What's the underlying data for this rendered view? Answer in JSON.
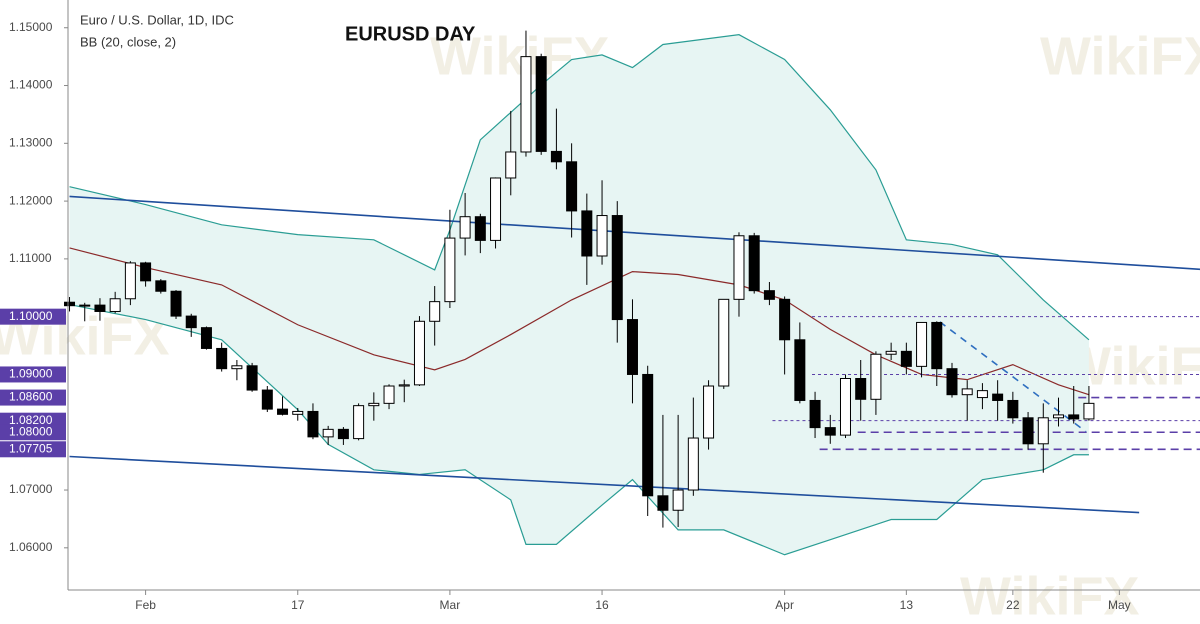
{
  "chart_data": {
    "type": "candlestick",
    "title": "EURUSD DAY",
    "legend_lines": [
      "Euro / U.S. Dollar, 1D, IDC",
      "BB (20, close, 2)"
    ],
    "watermark": "WikiFX",
    "xlim": [
      -0.1,
      74.3
    ],
    "ylim": [
      1.0527,
      1.1548
    ],
    "xticks": [
      {
        "value": 5,
        "label": "Feb"
      },
      {
        "value": 15,
        "label": "17"
      },
      {
        "value": 25,
        "label": "Mar"
      },
      {
        "value": 35,
        "label": "16"
      },
      {
        "value": 47,
        "label": "Apr"
      },
      {
        "value": 55,
        "label": "13"
      },
      {
        "value": 62,
        "label": "22"
      },
      {
        "value": 69,
        "label": "May"
      }
    ],
    "yticks": [
      {
        "value": 1.15,
        "label": "1.15000"
      },
      {
        "value": 1.14,
        "label": "1.14000"
      },
      {
        "value": 1.13,
        "label": "1.13000"
      },
      {
        "value": 1.12,
        "label": "1.12000"
      },
      {
        "value": 1.11,
        "label": "1.11000"
      },
      {
        "value": 1.07,
        "label": "1.07000"
      },
      {
        "value": 1.06,
        "label": "1.06000"
      }
    ],
    "up_color": "#ffffff",
    "down_color": "#000000",
    "open": [
      1.1025,
      1.1019,
      1.102,
      1.1009,
      1.1031,
      1.1093,
      1.1062,
      1.1044,
      1.1001,
      1.0981,
      1.0945,
      1.091,
      1.0915,
      1.0873,
      1.084,
      1.0831,
      1.0836,
      1.0792,
      1.0805,
      1.0789,
      1.0846,
      1.085,
      1.088,
      1.0882,
      1.0992,
      1.1026,
      1.1136,
      1.1173,
      1.1132,
      1.124,
      1.1285,
      1.145,
      1.1286,
      1.1268,
      1.1183,
      1.1105,
      1.1175,
      1.0995,
      1.09,
      1.069,
      1.0665,
      1.07,
      1.079,
      1.088,
      1.103,
      1.114,
      1.1045,
      1.103,
      1.096,
      1.0855,
      1.0808,
      1.0795,
      1.0893,
      1.0857,
      1.0935,
      1.094,
      1.0914,
      1.099,
      1.091,
      1.0865,
      1.086,
      1.0866,
      1.0855,
      1.0825,
      1.078,
      1.0825,
      1.083,
      1.0823
    ],
    "high": [
      1.1034,
      1.1024,
      1.1032,
      1.1043,
      1.1096,
      1.1095,
      1.1065,
      1.1046,
      1.1005,
      1.0983,
      1.0955,
      1.0925,
      1.092,
      1.088,
      1.0862,
      1.0842,
      1.085,
      1.0811,
      1.0809,
      1.085,
      1.0869,
      1.0883,
      1.0891,
      1.1001,
      1.1053,
      1.1185,
      1.1214,
      1.1178,
      1.1241,
      1.1356,
      1.1495,
      1.1455,
      1.136,
      1.13,
      1.1213,
      1.1236,
      1.12,
      1.103,
      1.0915,
      1.083,
      1.083,
      1.086,
      1.089,
      1.103,
      1.1146,
      1.1145,
      1.106,
      1.1035,
      1.099,
      1.087,
      1.083,
      1.09,
      1.0925,
      1.094,
      1.0955,
      1.0955,
      1.099,
      1.0992,
      1.092,
      1.089,
      1.0885,
      1.089,
      1.087,
      1.0835,
      1.085,
      1.086,
      1.088,
      1.088
    ],
    "low": [
      1.1009,
      1.0992,
      1.0993,
      1.1006,
      1.102,
      1.1052,
      1.104,
      1.0996,
      1.0965,
      1.0943,
      1.0905,
      1.089,
      1.087,
      1.0835,
      1.0829,
      1.082,
      1.0788,
      1.0778,
      1.0778,
      1.0786,
      1.082,
      1.084,
      1.0852,
      1.088,
      1.095,
      1.1015,
      1.1106,
      1.111,
      1.1118,
      1.121,
      1.1277,
      1.128,
      1.1255,
      1.1137,
      1.1055,
      1.109,
      1.0955,
      1.085,
      1.0655,
      1.0635,
      1.0636,
      1.069,
      1.077,
      1.0875,
      1.1,
      1.104,
      1.102,
      1.09,
      1.085,
      1.079,
      1.078,
      1.079,
      1.082,
      1.083,
      1.0925,
      1.09,
      1.0895,
      1.088,
      1.086,
      1.082,
      1.084,
      1.082,
      1.0815,
      1.077,
      1.073,
      1.081,
      1.0815,
      1.082
    ],
    "close": [
      1.1019,
      1.102,
      1.1009,
      1.1031,
      1.1093,
      1.1062,
      1.1044,
      1.1001,
      1.0981,
      1.0945,
      1.091,
      1.0915,
      1.0873,
      1.084,
      1.0831,
      1.0836,
      1.0792,
      1.0805,
      1.0789,
      1.0846,
      1.085,
      1.088,
      1.0882,
      1.0992,
      1.1026,
      1.1136,
      1.1173,
      1.1132,
      1.124,
      1.1285,
      1.145,
      1.1286,
      1.1268,
      1.1183,
      1.1105,
      1.1175,
      1.0995,
      1.09,
      1.069,
      1.0665,
      1.07,
      1.079,
      1.088,
      1.103,
      1.114,
      1.1045,
      1.103,
      1.096,
      1.0855,
      1.0808,
      1.0795,
      1.0893,
      1.0857,
      1.0935,
      1.094,
      1.0914,
      1.099,
      1.091,
      1.0865,
      1.0875,
      1.0872,
      1.0855,
      1.0825,
      1.078,
      1.0825,
      1.083,
      1.0823,
      1.085
    ],
    "bands": {
      "fill": "#e7f5f3",
      "upper": {
        "color": "#2a9d94",
        "x": [
          0,
          5,
          10,
          15,
          20,
          24,
          25,
          27,
          31,
          33,
          35,
          37,
          39,
          44,
          47,
          50,
          53,
          55,
          58,
          61,
          64,
          67
        ],
        "values": [
          1.1225,
          1.1194,
          1.1159,
          1.1142,
          1.1133,
          1.1081,
          1.115,
          1.1306,
          1.1401,
          1.1445,
          1.1453,
          1.1431,
          1.1471,
          1.1488,
          1.1445,
          1.1358,
          1.1254,
          1.1133,
          1.1125,
          1.1107,
          1.1029,
          1.096
        ]
      },
      "basis": {
        "color": "#8b2a2a",
        "x": [
          0,
          5,
          10,
          15,
          20,
          24,
          26,
          29,
          33,
          37,
          40,
          44,
          47,
          50,
          53,
          56,
          59,
          62,
          65,
          67
        ],
        "values": [
          1.1119,
          1.1085,
          1.1055,
          1.0986,
          1.0934,
          1.0908,
          1.0926,
          1.0969,
          1.1029,
          1.1078,
          1.1073,
          1.1055,
          1.1029,
          1.0978,
          1.0934,
          1.09,
          1.0891,
          1.0917,
          1.0882,
          1.0865
        ]
      },
      "lower": {
        "color": "#2a9d94",
        "x": [
          0,
          5,
          10,
          15,
          17,
          20,
          23,
          26,
          29,
          30,
          32,
          35,
          37,
          40,
          43,
          47,
          50,
          54,
          57,
          60,
          64,
          66,
          67
        ],
        "values": [
          1.1021,
          1.0995,
          1.096,
          1.0839,
          1.0779,
          1.0735,
          1.0727,
          1.0735,
          1.0683,
          1.0606,
          1.0606,
          1.0674,
          1.0718,
          1.0631,
          1.0631,
          1.0588,
          1.0614,
          1.0649,
          1.0649,
          1.0718,
          1.0735,
          1.0761,
          1.0761
        ]
      }
    },
    "trendlines": [
      {
        "color": "#1f4e9c",
        "dashed": false,
        "x": [
          0,
          74.3
        ],
        "values": [
          1.1208,
          1.1082
        ]
      },
      {
        "color": "#1f4e9c",
        "dashed": false,
        "x": [
          0,
          70.3
        ],
        "values": [
          1.0758,
          1.0661
        ]
      },
      {
        "color": "#2f6fc0",
        "dashed": true,
        "x": [
          57.2,
          66.8
        ],
        "values": [
          1.0991,
          1.0801
        ]
      }
    ],
    "levels": [
      {
        "value": 1.1,
        "label": "1.10000",
        "x_start": 48.8,
        "style": "dotted"
      },
      {
        "value": 1.09,
        "label": "1.09000",
        "x_start": 48.8,
        "style": "dotted"
      },
      {
        "value": 1.086,
        "label": "1.08600",
        "x_start": 66.3,
        "style": "dashed"
      },
      {
        "value": 1.082,
        "label": "1.08200",
        "x_start": 46.2,
        "style": "dotted"
      },
      {
        "value": 1.08,
        "label": "1.08000",
        "x_start": 51.8,
        "style": "dashed"
      },
      {
        "value": 1.07705,
        "label": "1.07705",
        "x_start": 49.3,
        "style": "dashed"
      }
    ],
    "level_color": "#5b3fa8"
  }
}
